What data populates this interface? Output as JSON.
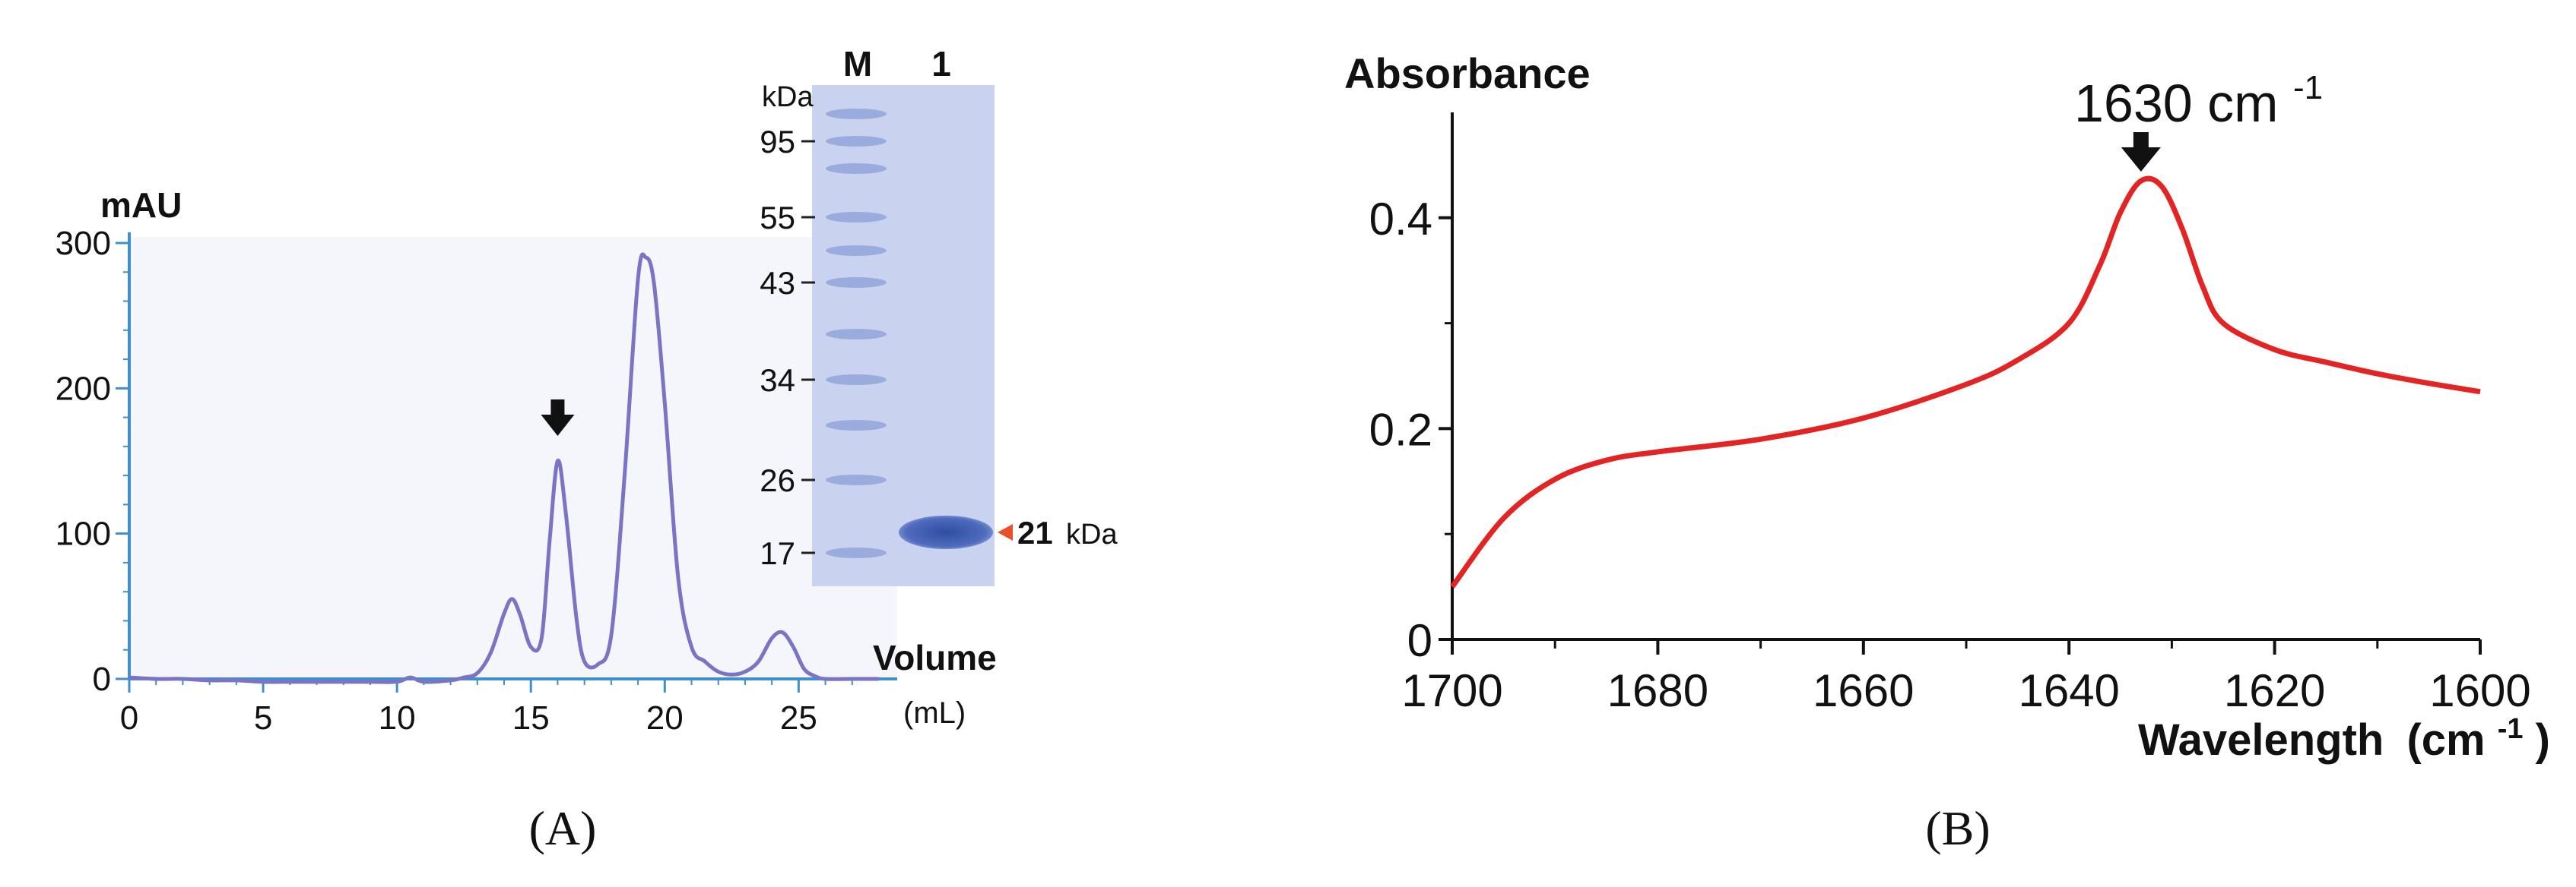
{
  "colors": {
    "chromatogram_line": "#7b74c4",
    "chromatogram_axis": "#3f8fcf",
    "chromatogram_bg": "#f4f6fc",
    "gel_bg": "#c9d3ef",
    "gel_band": "#3d5cad",
    "gel_band_faint": "#8ea2d8",
    "ir_line": "#e32424",
    "arrow": "#111111",
    "marker_triangle": "#e8502a"
  },
  "panel_a": {
    "caption": "(A)",
    "chart_data": {
      "type": "line",
      "title": "",
      "ylabel": "mAU",
      "xlabel": "Volume",
      "xlabel_unit": "(mL)",
      "xlim": [
        0,
        28
      ],
      "ylim": [
        0,
        300
      ],
      "x_ticks": [
        "0",
        "5",
        "10",
        "15",
        "20",
        "25"
      ],
      "y_ticks": [
        "0",
        "100",
        "200",
        "300"
      ],
      "grid": false,
      "series": [
        {
          "x": [
            0,
            1,
            2,
            3,
            4,
            5,
            6,
            7,
            8,
            9,
            10,
            10.5,
            11,
            12,
            12.5,
            13,
            13.5,
            14,
            14.3,
            14.6,
            15,
            15.4,
            15.7,
            16,
            16.3,
            16.7,
            17,
            17.5,
            18,
            18.5,
            19,
            19.3,
            19.6,
            20,
            20.5,
            21,
            21.5,
            22,
            22.5,
            23,
            23.5,
            24,
            24.4,
            24.8,
            25.2,
            25.6,
            26,
            27,
            28
          ],
          "y": [
            1,
            0,
            0,
            -1,
            -1,
            -2,
            -2,
            -2,
            -2,
            -2,
            -2,
            1,
            -2,
            -1,
            1,
            4,
            18,
            45,
            55,
            44,
            22,
            28,
            95,
            150,
            115,
            42,
            12,
            10,
            30,
            140,
            275,
            290,
            272,
            190,
            70,
            22,
            12,
            5,
            3,
            5,
            12,
            28,
            32,
            22,
            7,
            2,
            0,
            0,
            0
          ]
        }
      ],
      "annotations": [
        {
          "type": "arrow",
          "x": 16,
          "label": ""
        }
      ]
    },
    "gel": {
      "lane_labels": [
        "M",
        "1"
      ],
      "unit_label": "kDa",
      "marker_kda": [
        "95",
        "55",
        "43",
        "34",
        "26",
        "17"
      ],
      "band_label_value": "21",
      "band_label_unit": "kDa"
    }
  },
  "panel_b": {
    "caption": "(B)",
    "chart_data": {
      "type": "line",
      "title": "",
      "ylabel": "Absorbance",
      "xlabel": "Wavelength",
      "xlabel_unit": "(cm",
      "xlabel_unit_sup": "-1",
      "xlabel_unit_close": ")",
      "xlim": [
        1700,
        1600
      ],
      "x_reversed": true,
      "ylim": [
        0,
        0.5
      ],
      "x_ticks": [
        "1700",
        "1680",
        "1660",
        "1640",
        "1620",
        "1600"
      ],
      "y_ticks": [
        "0",
        "0.2",
        "0.4"
      ],
      "grid": false,
      "series": [
        {
          "x": [
            1700,
            1695,
            1690,
            1685,
            1680,
            1670,
            1660,
            1650,
            1645,
            1640,
            1637,
            1635,
            1633,
            1631,
            1629,
            1627,
            1625,
            1620,
            1615,
            1610,
            1605,
            1600
          ],
          "y": [
            0.05,
            0.115,
            0.152,
            0.17,
            0.178,
            0.19,
            0.21,
            0.242,
            0.265,
            0.3,
            0.355,
            0.405,
            0.435,
            0.43,
            0.39,
            0.335,
            0.3,
            0.275,
            0.263,
            0.252,
            0.243,
            0.235
          ]
        }
      ],
      "annotations": [
        {
          "type": "arrow",
          "x": 1633,
          "label": "1630 cm",
          "label_sup": "-1"
        }
      ]
    }
  }
}
